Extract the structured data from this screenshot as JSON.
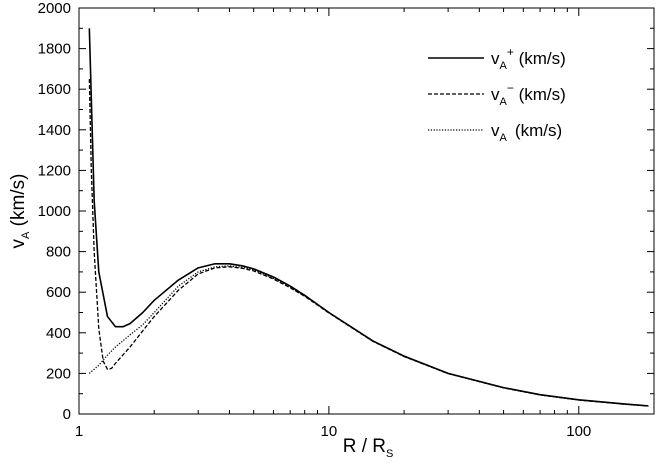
{
  "chart_data": {
    "type": "line",
    "title": "",
    "xlabel": {
      "main": "R / R",
      "sub": "S"
    },
    "ylabel": {
      "main": "v",
      "sub": "A",
      "unit": " (km/s)"
    },
    "x_scale": "log",
    "xlim": [
      1,
      200
    ],
    "ylim": [
      0,
      2000
    ],
    "x_ticks": [
      1,
      10,
      100
    ],
    "x_tick_labels": [
      "1",
      "10",
      "100"
    ],
    "y_ticks": [
      0,
      200,
      400,
      600,
      800,
      1000,
      1200,
      1400,
      1600,
      1800,
      2000
    ],
    "y_tick_labels": [
      "0",
      "200",
      "400",
      "600",
      "800",
      "1000",
      "1200",
      "1400",
      "1600",
      "1800",
      "2000"
    ],
    "grid": false,
    "legend_position": "top-right",
    "series": [
      {
        "name": "v_A^+ (km/s)",
        "legend": {
          "main": "v",
          "sub": "A",
          "sup": "+",
          "unit": " (km/s)"
        },
        "style": "solid",
        "color": "#000000",
        "x": [
          1.1,
          1.15,
          1.2,
          1.3,
          1.4,
          1.5,
          1.6,
          1.8,
          2.0,
          2.5,
          3.0,
          3.5,
          4.0,
          4.5,
          5.0,
          6.0,
          7.0,
          8.0,
          10,
          15,
          20,
          30,
          50,
          70,
          100,
          150,
          190
        ],
        "y": [
          1900,
          1050,
          700,
          480,
          430,
          430,
          445,
          500,
          560,
          660,
          720,
          740,
          740,
          730,
          715,
          675,
          630,
          585,
          500,
          360,
          285,
          200,
          130,
          95,
          70,
          50,
          40
        ]
      },
      {
        "name": "v_A^- (km/s)",
        "legend": {
          "main": "v",
          "sub": "A",
          "sup": "−",
          "unit": " (km/s)"
        },
        "style": "dashed",
        "color": "#000000",
        "x": [
          1.1,
          1.12,
          1.15,
          1.2,
          1.25,
          1.3,
          1.35,
          1.4,
          1.6,
          1.8,
          2.0,
          2.5,
          3.0,
          3.5,
          4.0,
          4.5,
          5.0,
          6.0,
          7.0,
          8.0,
          10,
          15,
          20,
          30,
          50,
          70,
          100,
          150,
          190
        ],
        "y": [
          1650,
          1200,
          800,
          420,
          260,
          220,
          225,
          250,
          330,
          410,
          480,
          610,
          690,
          720,
          725,
          718,
          705,
          665,
          622,
          580,
          498,
          358,
          283,
          199,
          129,
          94,
          69,
          49,
          39
        ]
      },
      {
        "name": "v_A (km/s)",
        "legend": {
          "main": "v",
          "sub": "A",
          "sup": "",
          "unit": " (km/s)"
        },
        "style": "dotted",
        "color": "#000000",
        "x": [
          1.1,
          1.2,
          1.3,
          1.4,
          1.6,
          1.8,
          2.0,
          2.5,
          3.0,
          3.5,
          4.0,
          4.5,
          5.0,
          6.0,
          7.0,
          8.0,
          10,
          15,
          20,
          30,
          50,
          70,
          100,
          150,
          190
        ],
        "y": [
          200,
          240,
          290,
          330,
          390,
          440,
          500,
          630,
          700,
          725,
          730,
          722,
          710,
          668,
          625,
          582,
          499,
          359,
          284,
          200,
          129,
          94,
          69,
          49,
          39
        ]
      }
    ]
  }
}
